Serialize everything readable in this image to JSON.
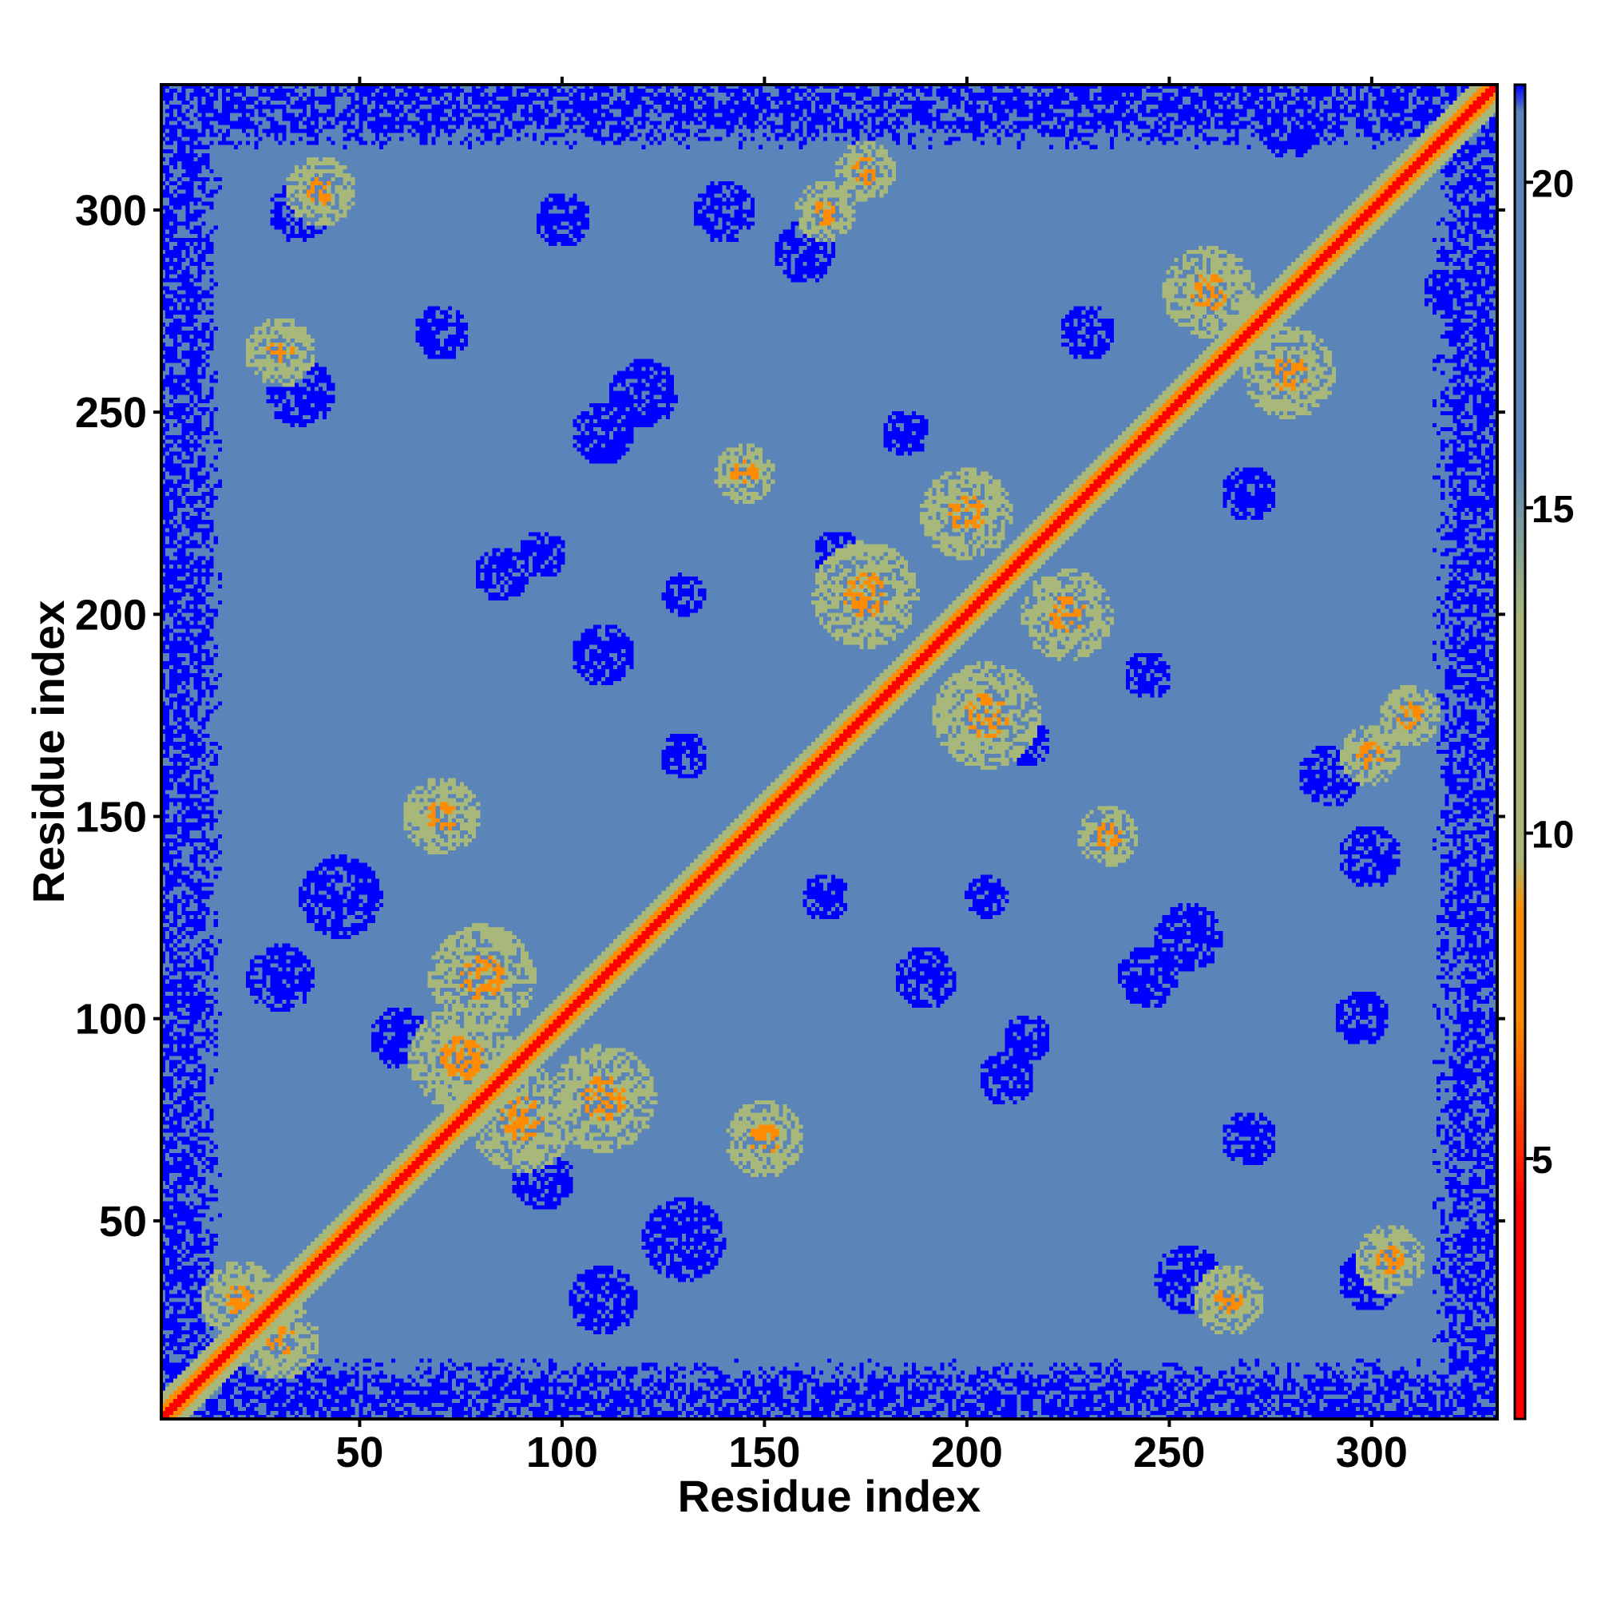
{
  "chart_data": {
    "type": "heatmap",
    "title": "",
    "xlabel": "Residue index",
    "ylabel": "Residue index",
    "xlim": [
      1,
      331
    ],
    "ylim": [
      1,
      331
    ],
    "x_ticks": [
      50,
      100,
      150,
      200,
      250,
      300
    ],
    "x_tick_labels": [
      "50",
      "100",
      "150",
      "200",
      "250",
      "300"
    ],
    "y_ticks": [
      50,
      100,
      150,
      200,
      250,
      300
    ],
    "y_tick_labels": [
      "50",
      "100",
      "150",
      "200",
      "250",
      "300"
    ],
    "symmetric": true,
    "colorbar": {
      "range": [
        1,
        21.5
      ],
      "ticks": [
        5,
        10,
        15,
        20
      ],
      "tick_labels": [
        "5",
        "10",
        "15",
        "20"
      ],
      "colors": {
        "near": "#ff0000",
        "mid": "#ff8c00",
        "light": "#a8b87a",
        "far": "#5b84b8",
        "max": "#0000ff"
      }
    },
    "description_values": {
      "diagonal_distance": 1,
      "background_distance": 19.5,
      "max_distance": 21.5
    }
  }
}
